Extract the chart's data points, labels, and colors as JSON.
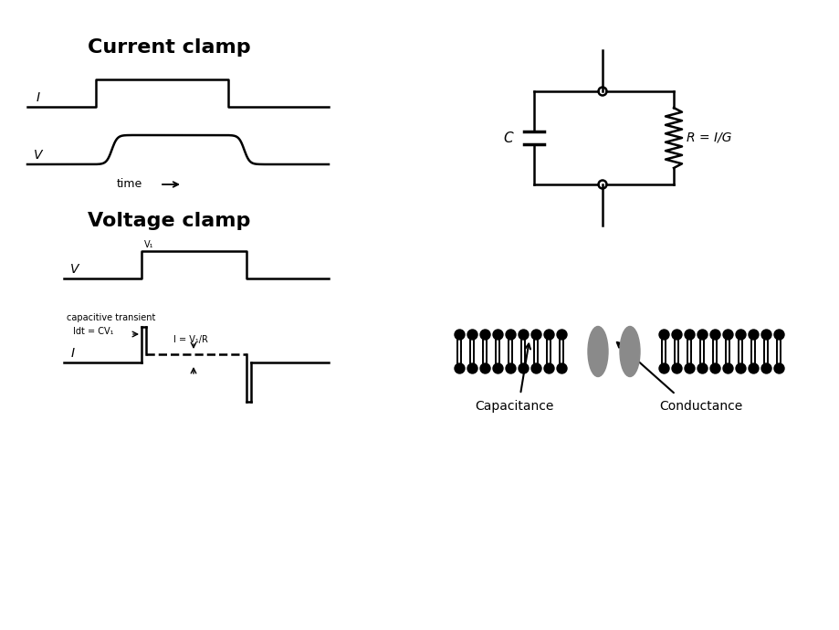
{
  "bg_color": "#ffffff",
  "title_current_clamp": "Current clamp",
  "title_voltage_clamp": "Voltage clamp",
  "label_I": "I",
  "label_V": "V",
  "label_time": "time",
  "label_C": "C",
  "label_R": "R = I/G",
  "label_cap_transient": "capacitive transient",
  "label_Idt": "Idt = CV₁",
  "label_I_eq": "I = V₁/R",
  "label_V1": "V₁",
  "label_Vcl": "V",
  "label_Icl": "I",
  "capacitance_label": "Capacitance",
  "conductance_label": "Conductance"
}
